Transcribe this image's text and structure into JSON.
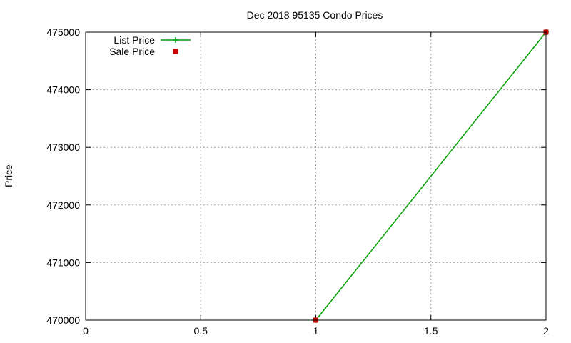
{
  "chart_data": {
    "type": "line",
    "title": "Dec 2018 95135 Condo Prices",
    "xlabel": "",
    "ylabel": "Price",
    "xlim": [
      0,
      2
    ],
    "ylim": [
      470000,
      475000
    ],
    "xticks": [
      "0",
      "0.5",
      "1",
      "1.5",
      "2"
    ],
    "yticks": [
      "470000",
      "471000",
      "472000",
      "473000",
      "474000",
      "475000"
    ],
    "grid": true,
    "legend_position": "top-left",
    "series": [
      {
        "name": "List Price",
        "style": "line-plus",
        "color": "#00a000",
        "x": [
          1,
          2
        ],
        "y": [
          470000,
          475000
        ]
      },
      {
        "name": "Sale Price",
        "style": "square-points",
        "color": "#cc0000",
        "x": [
          1,
          2
        ],
        "y": [
          470000,
          475000
        ]
      }
    ]
  }
}
